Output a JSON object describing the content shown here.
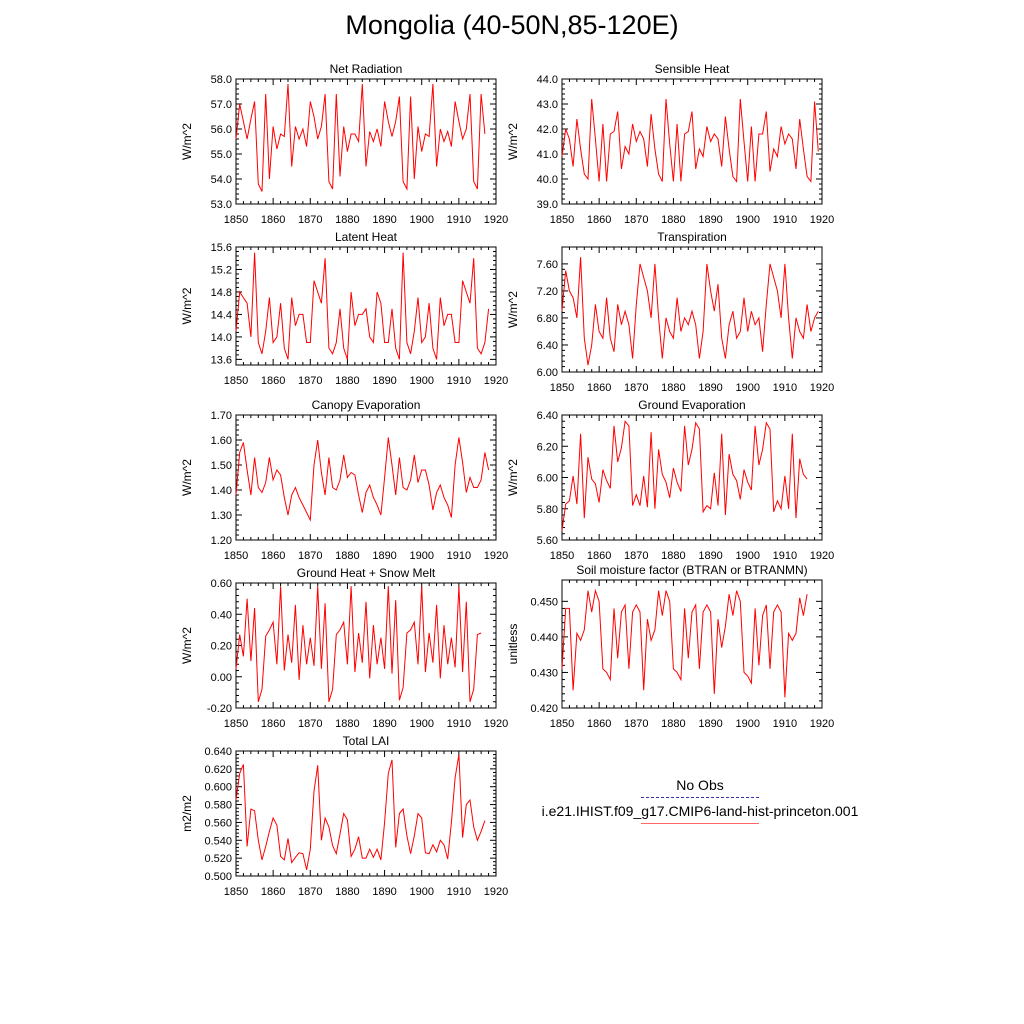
{
  "title": "Mongolia (40-50N,85-120E)",
  "legend": {
    "entries": [
      {
        "label": "No Obs",
        "color": "#3333aa",
        "style": "dashed"
      },
      {
        "label": "i.e21.IHIST.f09_g17.CMIP6-land-hist-princeton.001",
        "color": "#ff6666",
        "style": "solid"
      }
    ]
  },
  "chart_data": [
    {
      "type": "line",
      "title": "Net Radiation",
      "xlabel": "",
      "ylabel": "W/m^2",
      "xlim": [
        1850,
        1920
      ],
      "ylim": [
        53.0,
        58.0
      ],
      "xticks": [
        1850,
        1860,
        1870,
        1880,
        1890,
        1900,
        1910,
        1920
      ],
      "yticks": [
        53.0,
        54.0,
        55.0,
        56.0,
        57.0,
        58.0
      ],
      "ytick_decimals": 1,
      "series": [
        {
          "color": "#ff0000",
          "x_start": 1850,
          "x_step": 1,
          "values": [
            55.6,
            57.0,
            56.3,
            55.6,
            56.4,
            57.1,
            53.8,
            53.5,
            57.4,
            54.0,
            56.1,
            55.2,
            55.8,
            55.7,
            57.8,
            54.5,
            56.1,
            55.6,
            56.0,
            55.3,
            57.1,
            56.5,
            55.6,
            56.1,
            57.4,
            53.9,
            53.6,
            57.4,
            54.1,
            56.1,
            55.1,
            55.8,
            55.8,
            55.5,
            57.8,
            54.5,
            55.9,
            55.5,
            56.0,
            55.3,
            57.1,
            56.3,
            55.7,
            56.3,
            57.3,
            53.9,
            53.6,
            57.3,
            54.0,
            56.1,
            55.1,
            55.8,
            55.7,
            57.8,
            54.5,
            56.0,
            55.5,
            55.9,
            55.3,
            57.1,
            56.3,
            55.6,
            56.0,
            57.4,
            53.9,
            53.6,
            57.4,
            55.8
          ]
        }
      ]
    },
    {
      "type": "line",
      "title": "Sensible Heat",
      "xlabel": "",
      "ylabel": "W/m^2",
      "xlim": [
        1850,
        1920
      ],
      "ylim": [
        39.0,
        44.0
      ],
      "xticks": [
        1850,
        1860,
        1870,
        1880,
        1890,
        1900,
        1910,
        1920
      ],
      "yticks": [
        39.0,
        40.0,
        41.0,
        42.0,
        43.0,
        44.0
      ],
      "ytick_decimals": 1,
      "series": [
        {
          "color": "#ff0000",
          "x_start": 1850,
          "x_step": 1,
          "values": [
            40.9,
            42.0,
            41.6,
            40.5,
            42.4,
            41.2,
            40.2,
            40.0,
            43.2,
            41.6,
            39.9,
            42.2,
            39.9,
            41.8,
            41.9,
            42.7,
            40.4,
            41.3,
            41.0,
            42.2,
            41.5,
            41.9,
            41.6,
            40.5,
            42.6,
            41.2,
            40.2,
            39.9,
            43.2,
            41.4,
            39.9,
            42.2,
            39.9,
            41.8,
            41.9,
            42.7,
            40.4,
            41.2,
            40.9,
            42.1,
            41.5,
            41.8,
            41.6,
            40.5,
            42.5,
            41.2,
            40.1,
            39.9,
            43.2,
            41.5,
            39.9,
            42.1,
            39.9,
            41.8,
            41.8,
            42.7,
            40.3,
            41.2,
            40.9,
            42.1,
            41.4,
            41.8,
            41.6,
            40.4,
            42.4,
            41.2,
            40.1,
            39.9,
            43.1,
            41.1
          ]
        }
      ]
    },
    {
      "type": "line",
      "title": "Latent Heat",
      "xlabel": "",
      "ylabel": "W/m^2",
      "xlim": [
        1850,
        1920
      ],
      "ylim": [
        13.5,
        15.6
      ],
      "xticks": [
        1850,
        1860,
        1870,
        1880,
        1890,
        1900,
        1910,
        1920
      ],
      "yticks": [
        13.6,
        14.0,
        14.4,
        14.8,
        15.2,
        15.6
      ],
      "ytick_decimals": 1,
      "series": [
        {
          "color": "#ff0000",
          "x_start": 1850,
          "x_step": 1,
          "values": [
            14.1,
            14.8,
            14.7,
            14.6,
            14.0,
            15.5,
            13.9,
            13.7,
            14.1,
            14.7,
            13.9,
            14.0,
            14.6,
            13.8,
            13.6,
            14.7,
            14.2,
            14.4,
            14.4,
            13.9,
            13.9,
            15.0,
            14.8,
            14.6,
            15.4,
            13.8,
            13.7,
            13.9,
            14.5,
            13.8,
            13.6,
            14.8,
            14.2,
            14.4,
            14.4,
            14.5,
            14.0,
            13.9,
            14.8,
            14.6,
            13.9,
            13.9,
            14.5,
            13.8,
            13.6,
            15.5,
            13.9,
            13.7,
            14.1,
            14.7,
            13.9,
            14.0,
            14.6,
            13.8,
            13.6,
            14.7,
            14.2,
            14.4,
            14.4,
            13.9,
            13.9,
            15.0,
            14.8,
            14.6,
            15.4,
            13.8,
            13.7,
            13.9,
            14.5
          ]
        }
      ]
    },
    {
      "type": "line",
      "title": "Transpiration",
      "xlabel": "",
      "ylabel": "W/m^2",
      "xlim": [
        1850,
        1920
      ],
      "ylim": [
        6.0,
        7.85
      ],
      "xticks": [
        1850,
        1860,
        1870,
        1880,
        1890,
        1900,
        1910,
        1920
      ],
      "yticks": [
        6.0,
        6.4,
        6.8,
        7.2,
        7.6
      ],
      "ytick_decimals": 2,
      "series": [
        {
          "color": "#ff0000",
          "x_start": 1850,
          "x_step": 1,
          "values": [
            6.9,
            7.5,
            7.2,
            7.1,
            6.8,
            7.7,
            6.5,
            6.1,
            6.4,
            7.0,
            6.6,
            6.5,
            7.1,
            6.5,
            6.3,
            7.0,
            6.7,
            6.9,
            6.7,
            6.2,
            7.0,
            7.6,
            7.4,
            7.2,
            6.8,
            7.6,
            6.8,
            6.2,
            6.8,
            6.6,
            6.5,
            7.1,
            6.6,
            6.8,
            6.7,
            6.9,
            6.7,
            6.2,
            6.6,
            7.6,
            7.2,
            6.9,
            7.3,
            6.5,
            6.2,
            6.7,
            6.9,
            6.5,
            6.6,
            7.1,
            6.6,
            6.9,
            6.7,
            6.8,
            6.3,
            7.0,
            7.6,
            7.4,
            7.2,
            6.8,
            7.6,
            6.8,
            6.2,
            6.8,
            6.6,
            6.5,
            7.0,
            6.6,
            6.8,
            6.9
          ]
        }
      ]
    },
    {
      "type": "line",
      "title": "Canopy Evaporation",
      "xlabel": "",
      "ylabel": "W/m^2",
      "xlim": [
        1850,
        1920
      ],
      "ylim": [
        1.2,
        1.7
      ],
      "xticks": [
        1850,
        1860,
        1870,
        1880,
        1890,
        1900,
        1910,
        1920
      ],
      "yticks": [
        1.2,
        1.3,
        1.4,
        1.5,
        1.6,
        1.7
      ],
      "ytick_decimals": 2,
      "series": [
        {
          "color": "#ff0000",
          "x_start": 1850,
          "x_step": 1,
          "values": [
            1.38,
            1.55,
            1.59,
            1.48,
            1.38,
            1.53,
            1.41,
            1.39,
            1.43,
            1.53,
            1.44,
            1.48,
            1.46,
            1.37,
            1.3,
            1.38,
            1.41,
            1.37,
            1.34,
            1.31,
            1.28,
            1.5,
            1.6,
            1.47,
            1.38,
            1.53,
            1.41,
            1.4,
            1.44,
            1.54,
            1.45,
            1.47,
            1.46,
            1.38,
            1.31,
            1.39,
            1.42,
            1.37,
            1.34,
            1.3,
            1.45,
            1.61,
            1.5,
            1.38,
            1.53,
            1.41,
            1.4,
            1.44,
            1.54,
            1.43,
            1.48,
            1.48,
            1.42,
            1.32,
            1.39,
            1.42,
            1.37,
            1.34,
            1.29,
            1.5,
            1.61,
            1.51,
            1.39,
            1.45,
            1.41,
            1.41,
            1.44,
            1.55,
            1.48
          ]
        }
      ]
    },
    {
      "type": "line",
      "title": "Ground Evaporation",
      "xlabel": "",
      "ylabel": "W/m^2",
      "xlim": [
        1850,
        1920
      ],
      "ylim": [
        5.6,
        6.4
      ],
      "xticks": [
        1850,
        1860,
        1870,
        1880,
        1890,
        1900,
        1910,
        1920
      ],
      "yticks": [
        5.6,
        5.8,
        6.0,
        6.2,
        6.4
      ],
      "ytick_decimals": 2,
      "series": [
        {
          "color": "#ff0000",
          "x_start": 1850,
          "x_step": 1,
          "values": [
            5.66,
            5.83,
            5.85,
            6.01,
            5.83,
            6.28,
            5.74,
            6.13,
            5.99,
            5.96,
            5.84,
            6.05,
            5.98,
            5.93,
            6.33,
            6.1,
            6.19,
            6.36,
            6.33,
            5.82,
            5.89,
            5.82,
            6.01,
            5.81,
            6.29,
            5.8,
            6.18,
            6.02,
            5.97,
            5.87,
            6.06,
            5.97,
            5.91,
            6.33,
            6.08,
            6.18,
            6.35,
            6.31,
            5.78,
            5.82,
            5.8,
            6.03,
            5.82,
            6.28,
            5.76,
            6.15,
            6.02,
            5.98,
            5.86,
            6.05,
            5.97,
            5.92,
            6.33,
            6.08,
            6.18,
            6.35,
            6.31,
            5.78,
            5.85,
            5.8,
            6.01,
            5.8,
            6.28,
            5.74,
            6.12,
            6.02,
            5.99
          ]
        }
      ]
    },
    {
      "type": "line",
      "title": "Ground Heat + Snow Melt",
      "xlabel": "",
      "ylabel": "W/m^2",
      "xlim": [
        1850,
        1920
      ],
      "ylim": [
        -0.2,
        0.6
      ],
      "xticks": [
        1850,
        1860,
        1870,
        1880,
        1890,
        1900,
        1910,
        1920
      ],
      "yticks": [
        -0.2,
        0.0,
        0.2,
        0.4,
        0.6
      ],
      "ytick_decimals": 2,
      "series": [
        {
          "color": "#ff0000",
          "x_start": 1850,
          "x_step": 1,
          "values": [
            0.05,
            0.27,
            0.13,
            0.5,
            0.1,
            0.44,
            -0.16,
            -0.08,
            0.26,
            0.3,
            0.35,
            0.08,
            0.58,
            0.04,
            0.27,
            0.09,
            0.46,
            -0.02,
            0.33,
            0.08,
            0.25,
            0.07,
            0.58,
            0.05,
            0.47,
            -0.16,
            -0.08,
            0.27,
            0.3,
            0.35,
            0.08,
            0.58,
            0.03,
            0.28,
            0.09,
            0.48,
            -0.01,
            0.33,
            0.08,
            0.25,
            0.05,
            0.58,
            0.02,
            0.49,
            -0.15,
            -0.07,
            0.28,
            0.3,
            0.35,
            0.08,
            0.58,
            0.03,
            0.28,
            0.09,
            0.46,
            -0.01,
            0.33,
            0.08,
            0.25,
            0.06,
            0.58,
            0.03,
            0.48,
            -0.16,
            -0.08,
            0.27,
            0.28
          ]
        }
      ]
    },
    {
      "type": "line",
      "title": "Soil moisture factor (BTRAN or BTRANMN)",
      "xlabel": "",
      "ylabel": "unitless",
      "xlim": [
        1850,
        1920
      ],
      "ylim": [
        0.42,
        0.456
      ],
      "xticks": [
        1850,
        1860,
        1870,
        1880,
        1890,
        1900,
        1910,
        1920
      ],
      "yticks": [
        0.42,
        0.43,
        0.44,
        0.45
      ],
      "ytick_decimals": 3,
      "series": [
        {
          "color": "#ff0000",
          "x_start": 1850,
          "x_step": 1,
          "values": [
            0.431,
            0.448,
            0.448,
            0.425,
            0.441,
            0.439,
            0.442,
            0.453,
            0.447,
            0.453,
            0.45,
            0.431,
            0.43,
            0.428,
            0.448,
            0.434,
            0.447,
            0.449,
            0.431,
            0.447,
            0.449,
            0.447,
            0.425,
            0.445,
            0.439,
            0.442,
            0.453,
            0.446,
            0.453,
            0.45,
            0.431,
            0.43,
            0.428,
            0.448,
            0.434,
            0.447,
            0.449,
            0.431,
            0.447,
            0.449,
            0.447,
            0.424,
            0.445,
            0.437,
            0.443,
            0.452,
            0.446,
            0.453,
            0.45,
            0.43,
            0.429,
            0.427,
            0.448,
            0.432,
            0.446,
            0.449,
            0.431,
            0.447,
            0.449,
            0.447,
            0.423,
            0.441,
            0.439,
            0.441,
            0.451,
            0.446,
            0.452
          ]
        }
      ]
    },
    {
      "type": "line",
      "title": "Total LAI",
      "xlabel": "",
      "ylabel": "m2/m2",
      "xlim": [
        1850,
        1920
      ],
      "ylim": [
        0.5,
        0.64
      ],
      "xticks": [
        1850,
        1860,
        1870,
        1880,
        1890,
        1900,
        1910,
        1920
      ],
      "yticks": [
        0.5,
        0.52,
        0.54,
        0.56,
        0.58,
        0.6,
        0.62,
        0.64
      ],
      "ytick_decimals": 3,
      "series": [
        {
          "color": "#ff0000",
          "x_start": 1850,
          "x_step": 1,
          "values": [
            0.585,
            0.615,
            0.625,
            0.533,
            0.575,
            0.573,
            0.54,
            0.518,
            0.533,
            0.55,
            0.565,
            0.557,
            0.522,
            0.518,
            0.542,
            0.515,
            0.521,
            0.526,
            0.525,
            0.507,
            0.53,
            0.595,
            0.624,
            0.54,
            0.565,
            0.555,
            0.534,
            0.525,
            0.547,
            0.57,
            0.563,
            0.522,
            0.53,
            0.544,
            0.52,
            0.52,
            0.53,
            0.521,
            0.53,
            0.518,
            0.56,
            0.615,
            0.63,
            0.532,
            0.57,
            0.575,
            0.545,
            0.525,
            0.545,
            0.57,
            0.565,
            0.526,
            0.525,
            0.535,
            0.527,
            0.54,
            0.535,
            0.519,
            0.56,
            0.61,
            0.636,
            0.543,
            0.58,
            0.585,
            0.555,
            0.54,
            0.55,
            0.562
          ]
        }
      ]
    }
  ]
}
